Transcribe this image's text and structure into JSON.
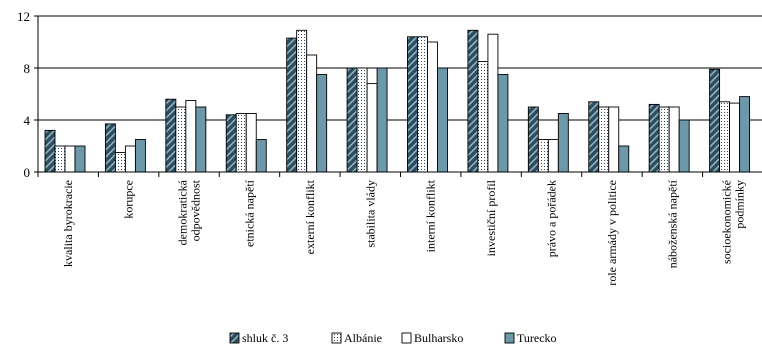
{
  "chart_data": {
    "type": "bar",
    "categories": [
      [
        "kvalita byrokracie"
      ],
      [
        "korupce"
      ],
      [
        "demokratická",
        "odpovědnost"
      ],
      [
        "etnická napětí"
      ],
      [
        "externí konflikt"
      ],
      [
        "stabilita vlády"
      ],
      [
        "interní konflikt"
      ],
      [
        "investiční profil"
      ],
      [
        "právo a pořádek"
      ],
      [
        "role armády v politice"
      ],
      [
        "náboženská napětí"
      ],
      [
        "socioekonomické",
        "podmínky"
      ]
    ],
    "series": [
      {
        "name": "shluk č. 3",
        "pattern": "diag",
        "values": [
          3.2,
          3.7,
          5.6,
          4.4,
          10.3,
          8.0,
          10.4,
          10.9,
          5.0,
          5.4,
          5.2,
          7.9
        ]
      },
      {
        "name": "Albánie",
        "pattern": "dots",
        "values": [
          2.0,
          1.5,
          5.0,
          4.5,
          10.9,
          8.0,
          10.4,
          8.5,
          2.5,
          5.0,
          5.0,
          5.4
        ]
      },
      {
        "name": "Bulharsko",
        "pattern": "white",
        "values": [
          2.0,
          2.0,
          5.5,
          4.5,
          9.0,
          6.8,
          10.0,
          10.6,
          2.5,
          5.0,
          5.0,
          5.3
        ]
      },
      {
        "name": "Turecko",
        "pattern": "solid",
        "values": [
          2.0,
          2.5,
          5.0,
          2.5,
          7.5,
          8.0,
          8.0,
          7.5,
          4.5,
          2.0,
          4.0,
          5.8
        ]
      }
    ],
    "ylim": [
      0,
      12
    ],
    "yticks": [
      0,
      4,
      8,
      12
    ],
    "grid": "horizontal",
    "legend": "bottom",
    "colors": {
      "dark": "#2d4d5e",
      "medium": "#6d98aa",
      "white": "#ffffff",
      "outline": "#000000"
    }
  }
}
